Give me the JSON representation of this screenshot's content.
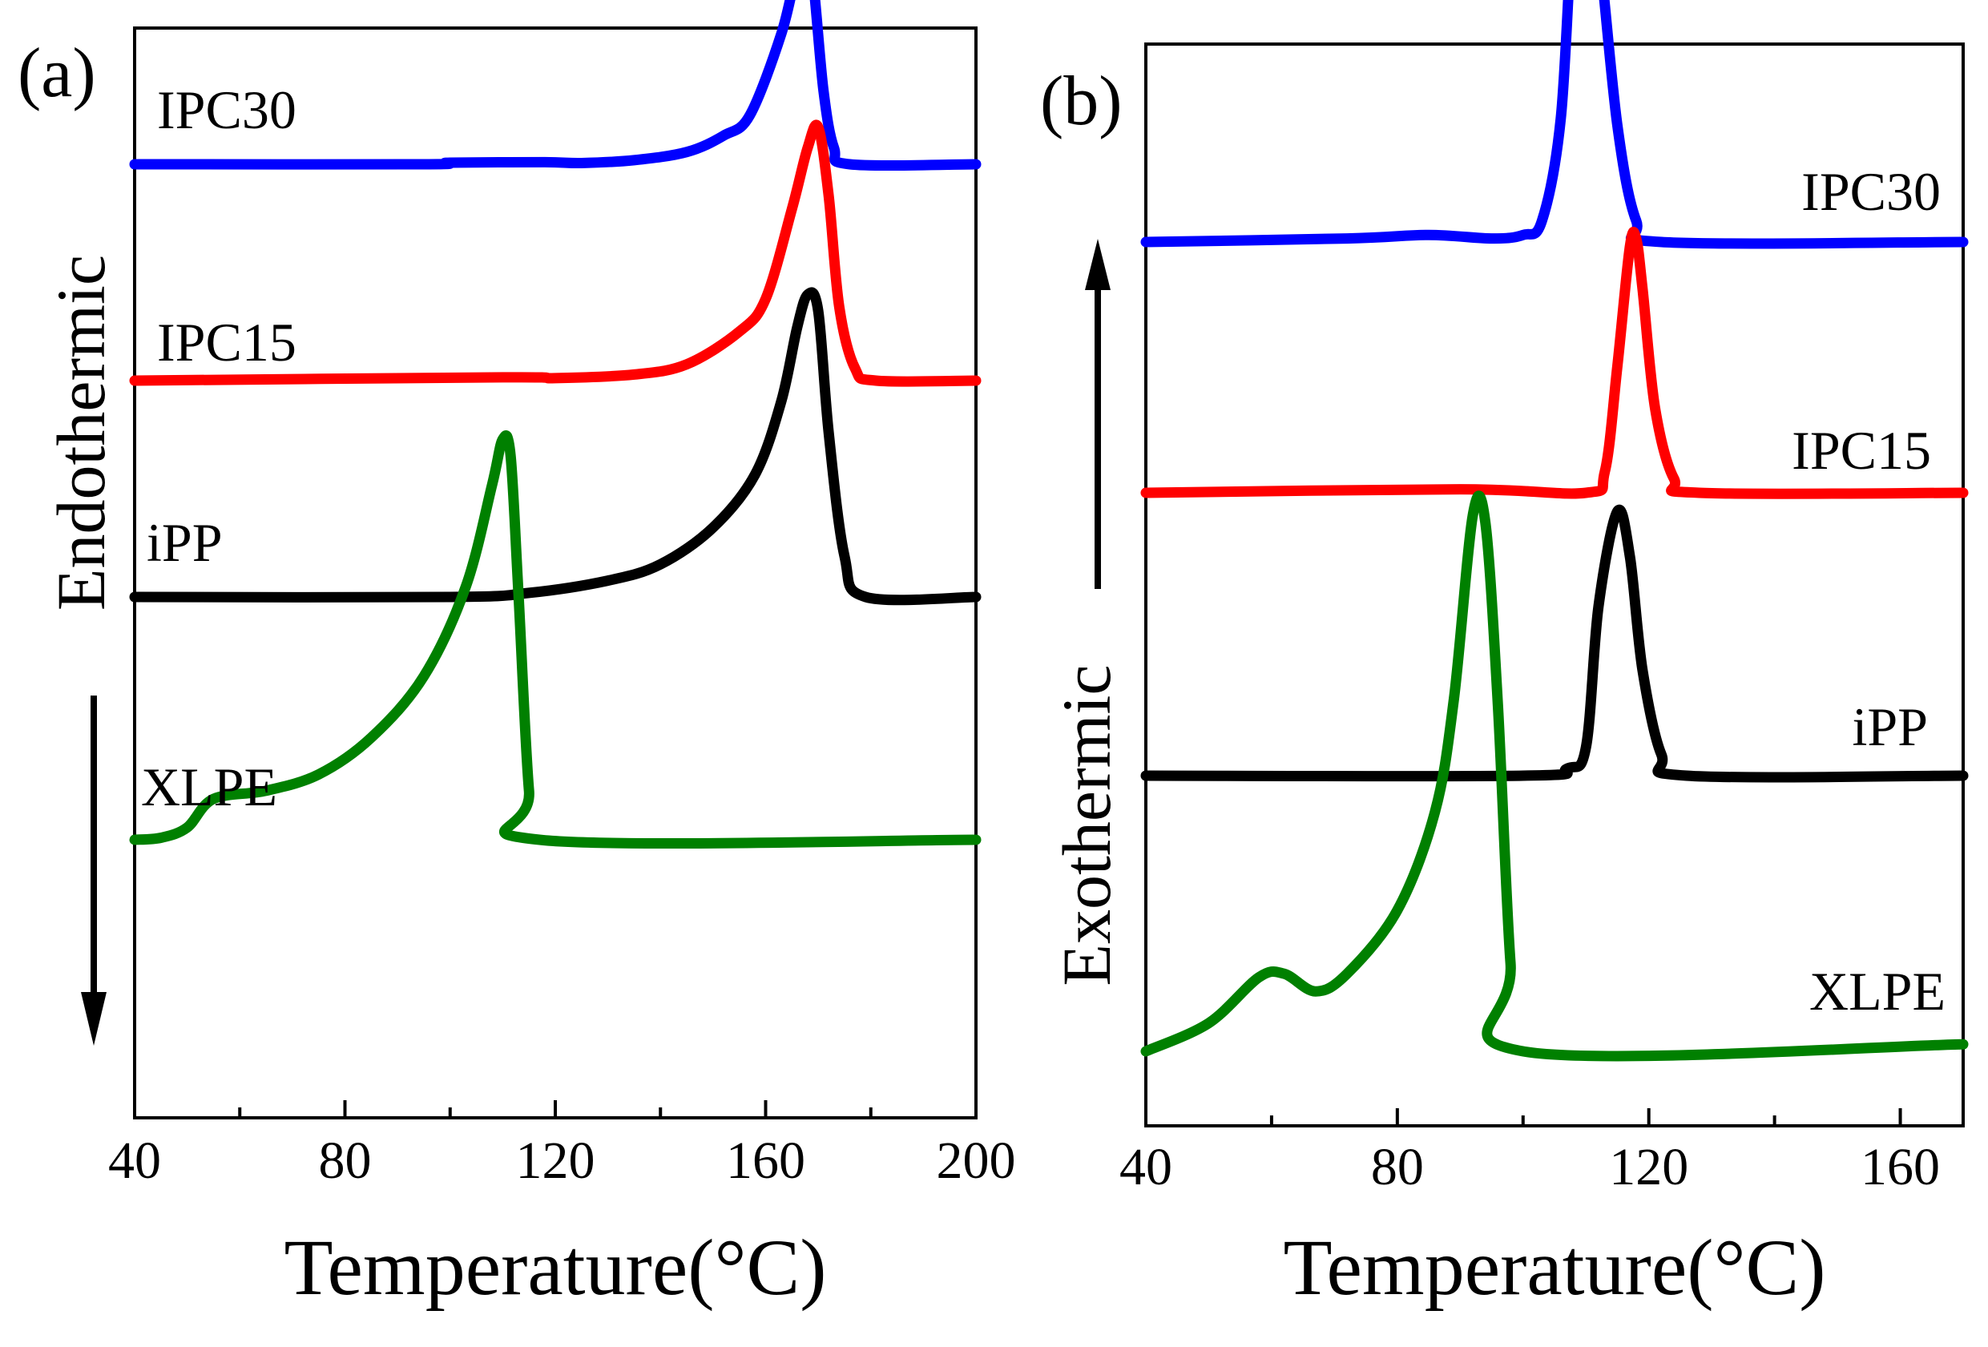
{
  "chart_data": [
    {
      "type": "line",
      "panel_label": "(a)",
      "xlabel": "Temperature(°C)",
      "ylabel": "Endothermic",
      "direction": "down",
      "xlim": [
        40,
        200
      ],
      "xticks": [
        40,
        80,
        120,
        160,
        200
      ],
      "grid": false,
      "series": [
        {
          "name": "IPC30",
          "color": "#0000ff",
          "points": [
            [
              40,
              0
            ],
            [
              95,
              0
            ],
            [
              100,
              -0.4
            ],
            [
              118,
              -0.5
            ],
            [
              125,
              -0.3
            ],
            [
              135,
              -1
            ],
            [
              145,
              -3
            ],
            [
              152,
              -7
            ],
            [
              157,
              -12
            ],
            [
              163,
              -32
            ],
            [
              166,
              -48
            ],
            [
              167.5,
              -52
            ],
            [
              169,
              -45
            ],
            [
              171,
              -18
            ],
            [
              173,
              -4
            ],
            [
              176,
              0
            ],
            [
              200,
              0
            ]
          ]
        },
        {
          "name": "IPC15",
          "color": "#ff0000",
          "points": [
            [
              40,
              0
            ],
            [
              110,
              -0.8
            ],
            [
              120,
              -0.6
            ],
            [
              135,
              -1.5
            ],
            [
              145,
              -4
            ],
            [
              155,
              -12
            ],
            [
              160,
              -20
            ],
            [
              165,
              -42
            ],
            [
              168,
              -57
            ],
            [
              170,
              -62
            ],
            [
              172,
              -45
            ],
            [
              174,
              -18
            ],
            [
              177,
              -3
            ],
            [
              181,
              0
            ],
            [
              200,
              0
            ]
          ]
        },
        {
          "name": "iPP",
          "color": "#000000",
          "points": [
            [
              40,
              0
            ],
            [
              100,
              0
            ],
            [
              115,
              -1
            ],
            [
              130,
              -4
            ],
            [
              140,
              -8
            ],
            [
              150,
              -17
            ],
            [
              158,
              -30
            ],
            [
              163,
              -48
            ],
            [
              166,
              -66
            ],
            [
              168,
              -74
            ],
            [
              170,
              -70
            ],
            [
              172,
              -40
            ],
            [
              175,
              -10
            ],
            [
              179,
              0
            ],
            [
              200,
              0
            ]
          ]
        },
        {
          "name": "XLPE",
          "color": "#008000",
          "points": [
            [
              40,
              0
            ],
            [
              45,
              -0.5
            ],
            [
              50,
              -3
            ],
            [
              55,
              -10
            ],
            [
              65,
              -12
            ],
            [
              75,
              -16
            ],
            [
              85,
              -25
            ],
            [
              95,
              -40
            ],
            [
              103,
              -62
            ],
            [
              108,
              -87
            ],
            [
              110,
              -98
            ],
            [
              111.5,
              -94
            ],
            [
              113,
              -60
            ],
            [
              115,
              -12
            ],
            [
              117,
              0
            ],
            [
              200,
              0
            ]
          ]
        }
      ]
    },
    {
      "type": "line",
      "panel_label": "(b)",
      "xlabel": "Temperature(°C)",
      "ylabel": "Exothermic",
      "direction": "up",
      "xlim": [
        40,
        170
      ],
      "xticks": [
        40,
        80,
        120,
        160
      ],
      "grid": false,
      "series": [
        {
          "name": "IPC30",
          "color": "#0000ff",
          "points": [
            [
              40,
              0
            ],
            [
              72,
              1
            ],
            [
              85,
              2
            ],
            [
              95,
              1
            ],
            [
              100,
              2
            ],
            [
              103,
              6
            ],
            [
              106,
              35
            ],
            [
              108,
              92
            ],
            [
              110,
              100
            ],
            [
              112,
              84
            ],
            [
              115,
              33
            ],
            [
              118,
              6
            ],
            [
              122,
              0
            ],
            [
              170,
              0
            ]
          ]
        },
        {
          "name": "IPC15",
          "color": "#ff0000",
          "points": [
            [
              40,
              0
            ],
            [
              90,
              1
            ],
            [
              110,
              0
            ],
            [
              113,
              6
            ],
            [
              115,
              36
            ],
            [
              117,
              70
            ],
            [
              118,
              72
            ],
            [
              119,
              58
            ],
            [
              121,
              24
            ],
            [
              124,
              4
            ],
            [
              128,
              0
            ],
            [
              170,
              0
            ]
          ]
        },
        {
          "name": "iPP",
          "color": "#000000",
          "points": [
            [
              40,
              0
            ],
            [
              100,
              0
            ],
            [
              107,
              2
            ],
            [
              110,
              8
            ],
            [
              112,
              48
            ],
            [
              115,
              75
            ],
            [
              117,
              62
            ],
            [
              119,
              30
            ],
            [
              122,
              6
            ],
            [
              126,
              0
            ],
            [
              170,
              0
            ]
          ]
        },
        {
          "name": "XLPE",
          "color": "#008000",
          "points": [
            [
              40,
              0
            ],
            [
              50,
              8
            ],
            [
              58,
              21
            ],
            [
              62,
              22
            ],
            [
              67,
              17
            ],
            [
              72,
              22
            ],
            [
              80,
              40
            ],
            [
              86,
              68
            ],
            [
              89,
              100
            ],
            [
              92,
              152
            ],
            [
              94,
              150
            ],
            [
              96,
              98
            ],
            [
              98,
              25
            ],
            [
              100,
              0
            ],
            [
              170,
              2
            ]
          ]
        }
      ]
    }
  ]
}
